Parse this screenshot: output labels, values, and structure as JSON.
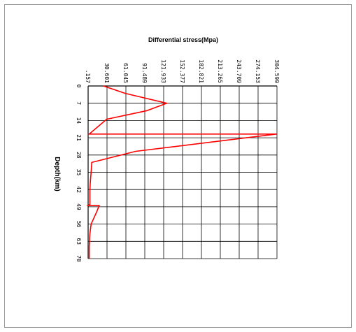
{
  "chart_data": {
    "type": "line",
    "title": "Differential stress(Mpa)",
    "xlabel": "Differential stress(Mpa)",
    "ylabel": "Depth(km)",
    "x_ticks": [
      ".157",
      "30.601",
      "61.045",
      "91.489",
      "121.933",
      "152.377",
      "182.821",
      "213.265",
      "243.709",
      "274.153",
      "304.599"
    ],
    "y_ticks": [
      "0",
      "7",
      "14",
      "21",
      "28",
      "35",
      "42",
      "49",
      "56",
      "63",
      "70"
    ],
    "xlim": [
      0.157,
      304.599
    ],
    "ylim": [
      0,
      70
    ],
    "grid": true,
    "series": [
      {
        "color": "#ff0000",
        "x": [
          25,
          60,
          127,
          95,
          30,
          2,
          152,
          304,
          77,
          6,
          5,
          4,
          3,
          3,
          0,
          18,
          14,
          5,
          3,
          2,
          2
        ],
        "y": [
          0,
          3,
          7,
          10,
          13.5,
          19.5,
          19.5,
          19.5,
          26.5,
          31,
          35,
          38,
          42,
          48,
          48.5,
          48.5,
          51,
          56,
          60,
          65,
          70
        ]
      }
    ]
  }
}
